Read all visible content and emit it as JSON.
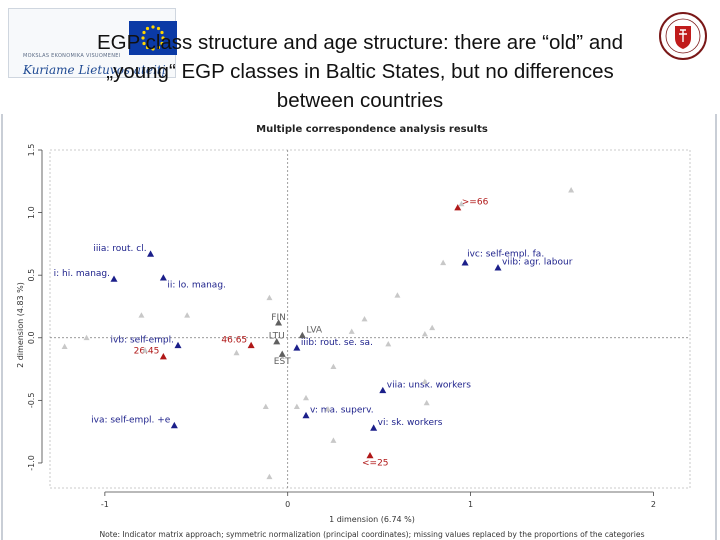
{
  "slide": {
    "title_line1": "EGP class structure and age structure: there are “old” and",
    "title_line2": "„young“ EGP classes in Baltic States, but no differences",
    "title_line3": "between countries"
  },
  "logos": {
    "left_small_text": "MOKSLAS  EKONOMIKA  VISUOMENEI",
    "left_slogan": "Kuriame Lietuvos ateitį",
    "right_seal": "university seal"
  },
  "colors": {
    "blue": "#1b1f8a",
    "red": "#b01818",
    "gray_text": "#606060",
    "faint": "#c8c8c8",
    "axis": "#777777"
  },
  "chart_data": {
    "type": "scatter",
    "title": "Multiple correspondence analysis results",
    "xlabel": "1 dimension (6.74 %)",
    "ylabel": "2 dimension (4.83 %)",
    "note": "Note: Indicator matrix approach; symmetric normalization (principal coordinates); missing values replaced by the proportions of the categories",
    "xlim": [
      -1.3,
      2.2
    ],
    "ylim": [
      -1.2,
      1.5
    ],
    "x_ticks": [
      -1,
      0,
      1,
      2
    ],
    "x_tick_labels": [
      "-1",
      "0",
      "1",
      "2"
    ],
    "y_ticks": [
      -1.0,
      -0.5,
      0.0,
      0.5,
      1.0,
      1.5
    ],
    "y_tick_labels": [
      "-1.0",
      "-0.5",
      "0.0",
      "0.5",
      "1.0",
      "1.5"
    ],
    "reference_lines": {
      "x": 0,
      "y": 0
    },
    "series": [
      {
        "color": "#1b1f8a",
        "points": [
          {
            "x": -0.75,
            "y": 0.67,
            "label": "iiia: rout. cl."
          },
          {
            "x": -0.95,
            "y": 0.47,
            "label": "i: hi. manag."
          },
          {
            "x": -0.68,
            "y": 0.48,
            "label": "ii: lo. manag."
          },
          {
            "x": 0.97,
            "y": 0.6,
            "label": "ivc: self-empl. fa."
          },
          {
            "x": 1.15,
            "y": 0.56,
            "label": "viib: agr. labour"
          },
          {
            "x": 0.05,
            "y": -0.08,
            "label": "iiib: rout. se. sa."
          },
          {
            "x": -0.6,
            "y": -0.06,
            "label": "ivb: self-empl."
          },
          {
            "x": 0.52,
            "y": -0.42,
            "label": "viia: unsk. workers"
          },
          {
            "x": 0.1,
            "y": -0.62,
            "label": "v: ma. superv."
          },
          {
            "x": 0.47,
            "y": -0.72,
            "label": "vi: sk. workers"
          },
          {
            "x": -0.62,
            "y": -0.7,
            "label": "iva: self-empl. +e"
          }
        ]
      },
      {
        "color": "#b01818",
        "points": [
          {
            "x": 0.93,
            "y": 1.04,
            "label": ">=66"
          },
          {
            "x": -0.2,
            "y": -0.06,
            "label": "46.65"
          },
          {
            "x": -0.68,
            "y": -0.15,
            "label": "26.45"
          },
          {
            "x": 0.45,
            "y": -0.94,
            "label": "<=25"
          }
        ]
      },
      {
        "color": "#606060",
        "points": [
          {
            "x": -0.05,
            "y": 0.12,
            "label": "FIN"
          },
          {
            "x": 0.08,
            "y": 0.02,
            "label": "LVA"
          },
          {
            "x": -0.06,
            "y": -0.03,
            "label": "LTU"
          },
          {
            "x": -0.03,
            "y": -0.13,
            "label": "EST"
          }
        ]
      },
      {
        "color": "#c8c8c8",
        "points": [
          {
            "x": 1.55,
            "y": 1.18,
            "label": ""
          },
          {
            "x": 0.95,
            "y": 1.07,
            "label": ""
          },
          {
            "x": 0.85,
            "y": 0.6,
            "label": ""
          },
          {
            "x": 0.6,
            "y": 0.34,
            "label": ""
          },
          {
            "x": 0.42,
            "y": 0.15,
            "label": ""
          },
          {
            "x": 0.79,
            "y": 0.08,
            "label": ""
          },
          {
            "x": 0.75,
            "y": 0.03,
            "label": ""
          },
          {
            "x": -0.8,
            "y": 0.18,
            "label": ""
          },
          {
            "x": -0.55,
            "y": 0.18,
            "label": ""
          },
          {
            "x": -0.1,
            "y": 0.32,
            "label": ""
          },
          {
            "x": -1.1,
            "y": 0.0,
            "label": ""
          },
          {
            "x": -1.22,
            "y": -0.07,
            "label": ""
          },
          {
            "x": -0.78,
            "y": -0.1,
            "label": ""
          },
          {
            "x": -0.28,
            "y": -0.12,
            "label": ""
          },
          {
            "x": 0.25,
            "y": -0.23,
            "label": ""
          },
          {
            "x": 0.75,
            "y": -0.35,
            "label": ""
          },
          {
            "x": 0.76,
            "y": -0.52,
            "label": ""
          },
          {
            "x": 0.1,
            "y": -0.48,
            "label": ""
          },
          {
            "x": 0.05,
            "y": -0.55,
            "label": ""
          },
          {
            "x": -0.12,
            "y": -0.55,
            "label": ""
          },
          {
            "x": 0.25,
            "y": -0.82,
            "label": ""
          },
          {
            "x": -0.1,
            "y": -1.11,
            "label": ""
          },
          {
            "x": 0.22,
            "y": -0.57,
            "label": ""
          },
          {
            "x": 0.35,
            "y": 0.05,
            "label": ""
          },
          {
            "x": 0.55,
            "y": -0.05,
            "label": ""
          }
        ]
      }
    ]
  }
}
